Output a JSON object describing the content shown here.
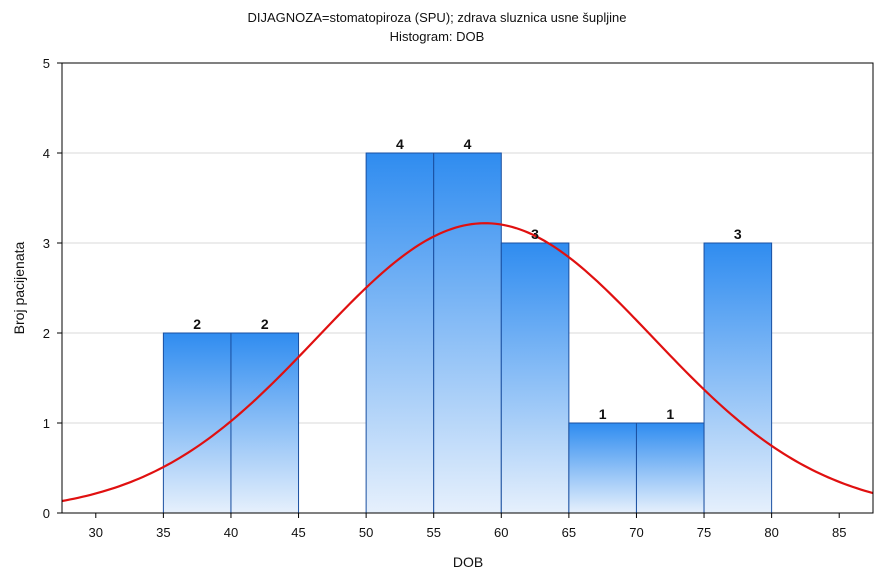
{
  "chart_data": {
    "type": "bar",
    "title": "DIJAGNOZA=stomatopiroza (SPU); zdrava sluznica usne šupljine",
    "subtitle": "Histogram: DOB",
    "xlabel": "DOB",
    "ylabel": "Broj pacijenata",
    "xlim": [
      27.5,
      87.5
    ],
    "ylim": [
      0,
      5
    ],
    "x_ticks": [
      30,
      35,
      40,
      45,
      50,
      55,
      60,
      65,
      70,
      75,
      80,
      85
    ],
    "y_ticks": [
      0,
      1,
      2,
      3,
      4,
      5
    ],
    "grid": true,
    "bins": [
      {
        "from": 35,
        "to": 40,
        "value": 2
      },
      {
        "from": 40,
        "to": 45,
        "value": 2
      },
      {
        "from": 50,
        "to": 55,
        "value": 4
      },
      {
        "from": 55,
        "to": 60,
        "value": 4
      },
      {
        "from": 60,
        "to": 65,
        "value": 3
      },
      {
        "from": 65,
        "to": 70,
        "value": 1
      },
      {
        "from": 70,
        "to": 75,
        "value": 1
      },
      {
        "from": 75,
        "to": 80,
        "value": 3
      }
    ],
    "normal_curve": {
      "mean": 58.8,
      "sd": 12.4,
      "peak": 3.22
    },
    "colors": {
      "bar_top": "#2f8cf0",
      "bar_bottom": "#e6f0fc",
      "bar_stroke": "#1a4fa0",
      "curve": "#e01010",
      "grid": "#d9d9d9"
    }
  }
}
